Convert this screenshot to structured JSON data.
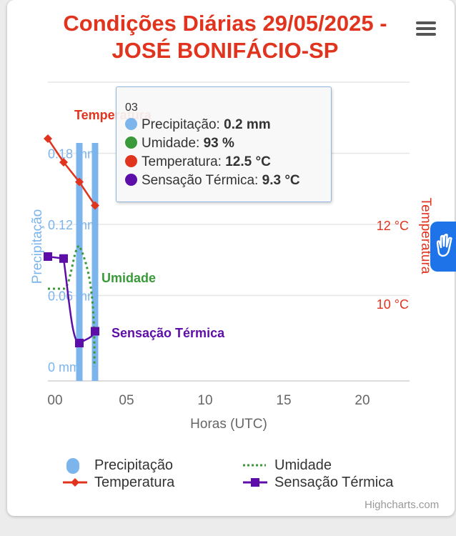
{
  "page": {
    "title_line1": "Condições Diárias 29/05/2025 -",
    "title_line2": "JOSÉ BONIFÁCIO-SP",
    "credits": "Highcharts.com"
  },
  "tooltip": {
    "header": "03",
    "rows": [
      {
        "label": "Precipitação: ",
        "value": "0.2 mm",
        "color": "#7cb5ec"
      },
      {
        "label": "Umidade: ",
        "value": "93 %",
        "color": "#3a9a3a"
      },
      {
        "label": "Temperatura: ",
        "value": "12.5 °C",
        "color": "#e0341f"
      },
      {
        "label": "Sensação Térmica: ",
        "value": "9.3 °C",
        "color": "#5e0ea8"
      }
    ]
  },
  "chart_data": {
    "type": "line",
    "xlabel": "Horas (UTC)",
    "x_ticks": [
      "00",
      "05",
      "10",
      "15",
      "20"
    ],
    "x_tick_values": [
      0,
      5,
      10,
      15,
      20
    ],
    "xlim": [
      0,
      23
    ],
    "y_axes": {
      "precipitation": {
        "title": "Precipitação",
        "ticks": [
          "0 mm",
          "0.06 mm",
          "0.12 mm",
          "0.18 mm"
        ],
        "tick_values": [
          0,
          0.06,
          0.12,
          0.18
        ],
        "range": [
          0,
          0.24
        ],
        "color": "#7cb5ec"
      },
      "temperature": {
        "title": "Temperatura",
        "ticks": [
          "10 °C",
          "12 °C"
        ],
        "tick_values": [
          10,
          12
        ],
        "color": "#e0341f"
      }
    },
    "series": [
      {
        "name": "Precipitação",
        "type": "column",
        "color": "#7cb5ec",
        "x": [
          2,
          3
        ],
        "values": [
          0.2,
          0.2
        ],
        "label": ""
      },
      {
        "name": "Umidade",
        "type": "line-dotted",
        "color": "#3a9a3a",
        "x": [
          0,
          1,
          2,
          3
        ],
        "values": [
          89,
          89,
          97,
          93
        ],
        "label": "Umidade"
      },
      {
        "name": "Temperatura",
        "type": "line",
        "color": "#e0341f",
        "x": [
          0,
          1,
          2,
          3
        ],
        "values": [
          14.2,
          13.6,
          13.1,
          12.5
        ],
        "label": "Temperatura"
      },
      {
        "name": "Sensação Térmica",
        "type": "line",
        "color": "#5e0ea8",
        "x": [
          0,
          1,
          2,
          3
        ],
        "values": [
          11.2,
          11.15,
          9.0,
          9.3
        ],
        "label": "Sensação Térmica"
      }
    ],
    "legend": [
      {
        "name": "Precipitação",
        "symbol": "column",
        "color": "#7cb5ec"
      },
      {
        "name": "Umidade",
        "symbol": "dotted",
        "color": "#3a9a3a"
      },
      {
        "name": "Temperatura",
        "symbol": "diamond",
        "color": "#e0341f"
      },
      {
        "name": "Sensação Térmica",
        "symbol": "square",
        "color": "#5e0ea8"
      }
    ],
    "legend_position": "bottom",
    "grid": true
  }
}
